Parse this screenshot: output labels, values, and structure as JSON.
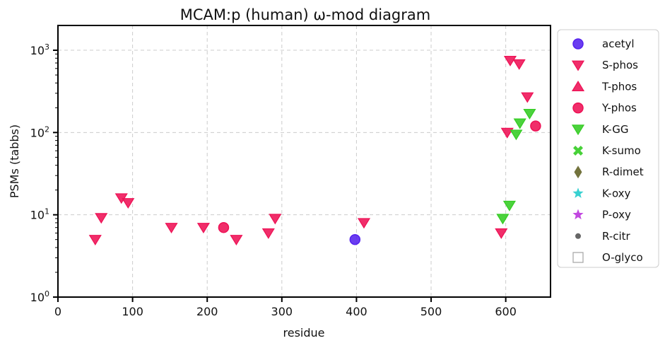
{
  "chart_data": {
    "type": "scatter",
    "title": "MCAM:p (human) ω-mod diagram",
    "xlabel": "residue",
    "ylabel": "PSMs (tabbs)",
    "xlim": [
      0,
      660
    ],
    "ylim": [
      1,
      2000
    ],
    "yscale": "log",
    "x_ticks": [
      0,
      100,
      200,
      300,
      400,
      500,
      600
    ],
    "y_ticks": [
      {
        "value": 1,
        "base": "10",
        "exp": "0"
      },
      {
        "value": 10,
        "base": "10",
        "exp": "1"
      },
      {
        "value": 100,
        "base": "10",
        "exp": "2"
      },
      {
        "value": 1000,
        "base": "10",
        "exp": "3"
      }
    ],
    "grid": true,
    "legend_position": "outside-right",
    "series": [
      {
        "name": "acetyl",
        "marker": "circle",
        "color": "#5522ee",
        "points": [
          [
            398,
            5
          ]
        ]
      },
      {
        "name": "S-phos",
        "marker": "triangle-down",
        "color": "#ee1155",
        "points": [
          [
            50,
            5
          ],
          [
            58,
            9.2
          ],
          [
            85,
            16
          ],
          [
            94,
            14
          ],
          [
            152,
            7
          ],
          [
            195,
            7
          ],
          [
            239,
            5
          ],
          [
            282,
            6
          ],
          [
            291,
            9
          ],
          [
            410,
            8
          ],
          [
            594,
            6
          ],
          [
            602,
            100
          ],
          [
            606,
            750
          ],
          [
            618,
            680
          ],
          [
            629,
            270
          ]
        ]
      },
      {
        "name": "T-phos",
        "marker": "triangle-up",
        "color": "#ee1155",
        "points": []
      },
      {
        "name": "Y-phos",
        "marker": "circle",
        "color": "#ee1155",
        "points": [
          [
            222,
            7
          ],
          [
            640,
            120
          ]
        ]
      },
      {
        "name": "K-GG",
        "marker": "triangle-down",
        "color": "#33cc22",
        "points": [
          [
            596,
            9
          ],
          [
            605,
            13
          ],
          [
            614,
            95
          ],
          [
            619,
            130
          ],
          [
            632,
            170
          ]
        ]
      },
      {
        "name": "K-sumo",
        "marker": "x",
        "color": "#33cc22",
        "points": []
      },
      {
        "name": "R-dimet",
        "marker": "diamond",
        "color": "#6b6b33",
        "points": []
      },
      {
        "name": "K-oxy",
        "marker": "star",
        "color": "#22cccc",
        "points": []
      },
      {
        "name": "P-oxy",
        "marker": "star",
        "color": "#bb33dd",
        "points": []
      },
      {
        "name": "R-citr",
        "marker": "dot",
        "color": "#666666",
        "points": []
      },
      {
        "name": "O-glyco",
        "marker": "square-open",
        "color": "#aaaaaa",
        "points": []
      }
    ]
  }
}
